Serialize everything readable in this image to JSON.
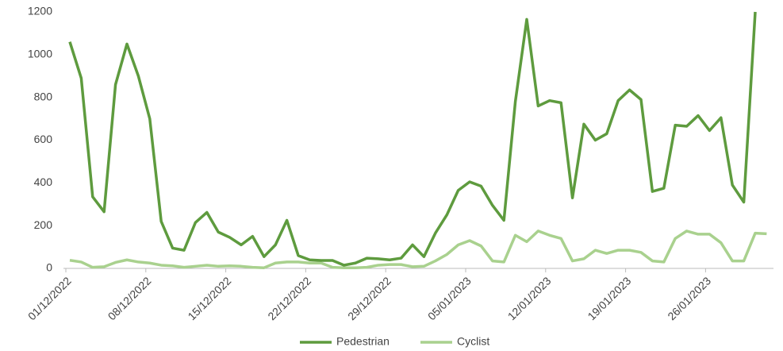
{
  "chart_data": {
    "type": "line",
    "categories": [
      "01/12/2022",
      null,
      null,
      null,
      null,
      null,
      null,
      "08/12/2022",
      null,
      null,
      null,
      null,
      null,
      null,
      "15/12/2022",
      null,
      null,
      null,
      null,
      null,
      null,
      "22/12/2022",
      null,
      null,
      null,
      null,
      null,
      null,
      "29/12/2022",
      null,
      null,
      null,
      null,
      null,
      null,
      "05/01/2023",
      null,
      null,
      null,
      null,
      null,
      null,
      "12/01/2023",
      null,
      null,
      null,
      null,
      null,
      null,
      "19/01/2023",
      null,
      null,
      null,
      null,
      null,
      null,
      "26/01/2023",
      null,
      null,
      null,
      null,
      null
    ],
    "series": [
      {
        "name": "Pedestrian",
        "color": "#5e9b3e",
        "values": [
          1060,
          890,
          335,
          265,
          860,
          1050,
          900,
          700,
          220,
          95,
          85,
          215,
          262,
          170,
          145,
          110,
          150,
          55,
          110,
          225,
          60,
          40,
          37,
          37,
          15,
          25,
          48,
          45,
          40,
          48,
          110,
          55,
          165,
          250,
          365,
          405,
          385,
          295,
          225,
          780,
          1165,
          760,
          785,
          775,
          330,
          675,
          600,
          630,
          785,
          835,
          790,
          360,
          375,
          670,
          665,
          715,
          645,
          705,
          390,
          310,
          1200,
          null
        ]
      },
      {
        "name": "Cyclist",
        "color": "#a9d18e",
        "values": [
          38,
          30,
          5,
          8,
          28,
          40,
          30,
          25,
          15,
          12,
          5,
          10,
          15,
          10,
          12,
          10,
          5,
          3,
          25,
          30,
          30,
          25,
          25,
          5,
          3,
          3,
          5,
          15,
          18,
          18,
          8,
          10,
          35,
          65,
          110,
          130,
          105,
          35,
          30,
          155,
          125,
          175,
          155,
          140,
          35,
          45,
          85,
          70,
          85,
          85,
          75,
          35,
          30,
          140,
          175,
          160,
          160,
          120,
          35,
          35,
          165,
          162
        ]
      }
    ],
    "ylim": [
      0,
      1200
    ],
    "yticks": [
      0,
      200,
      400,
      600,
      800,
      1000,
      1200
    ],
    "grid": false
  }
}
